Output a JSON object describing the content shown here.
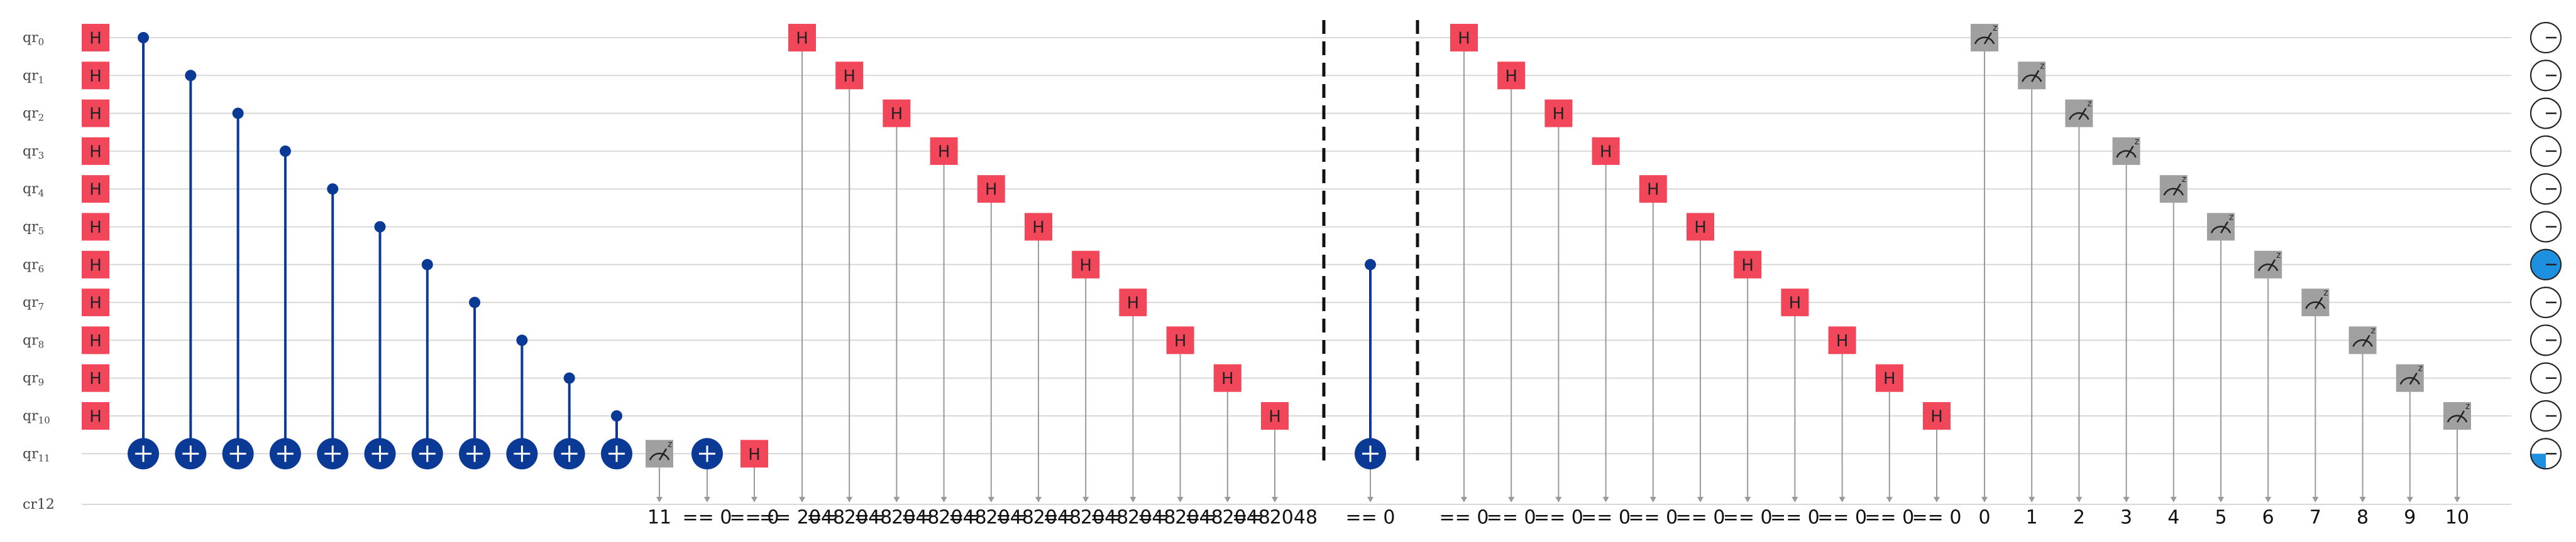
{
  "qubits": [
    "qr0",
    "qr1",
    "qr2",
    "qr3",
    "qr4",
    "qr5",
    "qr6",
    "qr7",
    "qr8",
    "qr9",
    "qr10",
    "qr11"
  ],
  "classical_register": "cr12",
  "gate_label": "H",
  "cnot_group1": {
    "controls": [
      0,
      1,
      2,
      3,
      4,
      5,
      6,
      7,
      8,
      9,
      10
    ],
    "target": 11
  },
  "mid_measure": {
    "qubit": 11,
    "classical_index": "11"
  },
  "conditional_x": {
    "qubit": 11,
    "condition": "== 0"
  },
  "conditional_h": {
    "qubit": 11,
    "condition": "== 0"
  },
  "cond_h_group1": {
    "qubits": [
      0,
      1,
      2,
      3,
      4,
      5,
      6,
      7,
      8,
      9,
      10
    ],
    "condition": "== 2048"
  },
  "cnot_group2": {
    "control": 6,
    "target": 11,
    "condition": "== 0"
  },
  "cond_h_group2": {
    "qubits": [
      0,
      1,
      2,
      3,
      4,
      5,
      6,
      7,
      8,
      9,
      10
    ],
    "condition": "== 0"
  },
  "final_measures": {
    "qubits": [
      0,
      1,
      2,
      3,
      4,
      5,
      6,
      7,
      8,
      9,
      10
    ],
    "indices": [
      "0",
      "1",
      "2",
      "3",
      "4",
      "5",
      "6",
      "7",
      "8",
      "9",
      "10"
    ]
  },
  "bloch_states": [
    {
      "qubit": 0,
      "fill": 0.0
    },
    {
      "qubit": 1,
      "fill": 0.0
    },
    {
      "qubit": 2,
      "fill": 0.0
    },
    {
      "qubit": 3,
      "fill": 0.0
    },
    {
      "qubit": 4,
      "fill": 0.0
    },
    {
      "qubit": 5,
      "fill": 0.0
    },
    {
      "qubit": 6,
      "fill": 1.0
    },
    {
      "qubit": 7,
      "fill": 0.0
    },
    {
      "qubit": 8,
      "fill": 0.0
    },
    {
      "qubit": 9,
      "fill": 0.0
    },
    {
      "qubit": 10,
      "fill": 0.0
    },
    {
      "qubit": 11,
      "fill": 0.25
    }
  ],
  "colors": {
    "h_gate": "#f2475a",
    "cnot": "#0b3a96",
    "measure": "#a0a0a0",
    "barrier": "#111111",
    "bloch_fill": "#1e90e0",
    "wire": "#d8d8d8"
  }
}
